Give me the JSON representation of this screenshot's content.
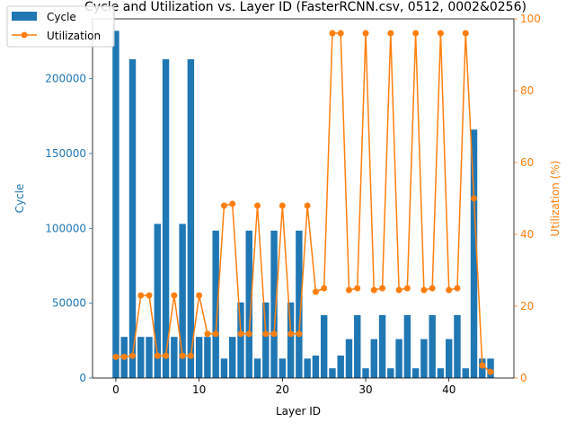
{
  "chart_data": {
    "type": "bar+line",
    "title": "Cycle and Utilization vs. Layer ID (FasterRCNN.csv, 0512, 0002&0256)",
    "xlabel": "Layer ID",
    "ylabel_left": "Cycle",
    "ylabel_right": "Utilization (%)",
    "xlim": [
      -2.8,
      47.8
    ],
    "ylim_left": [
      0,
      240000
    ],
    "ylim_right": [
      0,
      100
    ],
    "xticks": [
      "0",
      "10",
      "20",
      "30",
      "40"
    ],
    "yticks_left": [
      "0",
      "50000",
      "100000",
      "150000",
      "200000"
    ],
    "yticks_right": [
      "0",
      "20",
      "40",
      "60",
      "80",
      "100"
    ],
    "legend_position": "top-left",
    "colors": {
      "bar": "#1f77b4",
      "line": "#ff7f0e",
      "left_axis": "#1f77b4",
      "right_axis": "#ff7f0e"
    },
    "series": [
      {
        "name": "Cycle",
        "type": "bar",
        "x": [
          0,
          1,
          2,
          3,
          4,
          5,
          6,
          7,
          8,
          9,
          10,
          11,
          12,
          13,
          14,
          15,
          16,
          17,
          18,
          19,
          20,
          21,
          22,
          23,
          24,
          25,
          26,
          27,
          28,
          29,
          30,
          31,
          32,
          33,
          34,
          35,
          36,
          37,
          38,
          39,
          40,
          41,
          42,
          43,
          44,
          45
        ],
        "values": [
          232000,
          27500,
          213000,
          27500,
          27500,
          103000,
          213000,
          27500,
          103000,
          213000,
          27500,
          27500,
          98500,
          13000,
          27500,
          50500,
          98500,
          13000,
          50500,
          98500,
          13000,
          50500,
          98500,
          13000,
          15000,
          42000,
          6500,
          15000,
          26000,
          42000,
          6500,
          26000,
          42000,
          6500,
          26000,
          42000,
          6500,
          26000,
          42000,
          6500,
          26000,
          42000,
          6500,
          166000,
          13000,
          13000
        ]
      },
      {
        "name": "Utilization",
        "type": "line",
        "x": [
          0,
          1,
          2,
          3,
          4,
          5,
          6,
          7,
          8,
          9,
          10,
          11,
          12,
          13,
          14,
          15,
          16,
          17,
          18,
          19,
          20,
          21,
          22,
          23,
          24,
          25,
          26,
          27,
          28,
          29,
          30,
          31,
          32,
          33,
          34,
          35,
          36,
          37,
          38,
          39,
          40,
          41,
          42,
          43,
          44,
          45
        ],
        "values": [
          5.9,
          5.9,
          6.2,
          23,
          23,
          6.2,
          6.2,
          23,
          6.2,
          6.2,
          23,
          12.3,
          12.3,
          48,
          48.5,
          12.3,
          12.3,
          48,
          12.3,
          12.3,
          48,
          12.3,
          12.3,
          48,
          24,
          25,
          96,
          96,
          24.5,
          25,
          96,
          24.5,
          25,
          96,
          24.5,
          25,
          96,
          24.5,
          25,
          96,
          24.5,
          25,
          96,
          50,
          3.5,
          1.7
        ]
      }
    ]
  }
}
